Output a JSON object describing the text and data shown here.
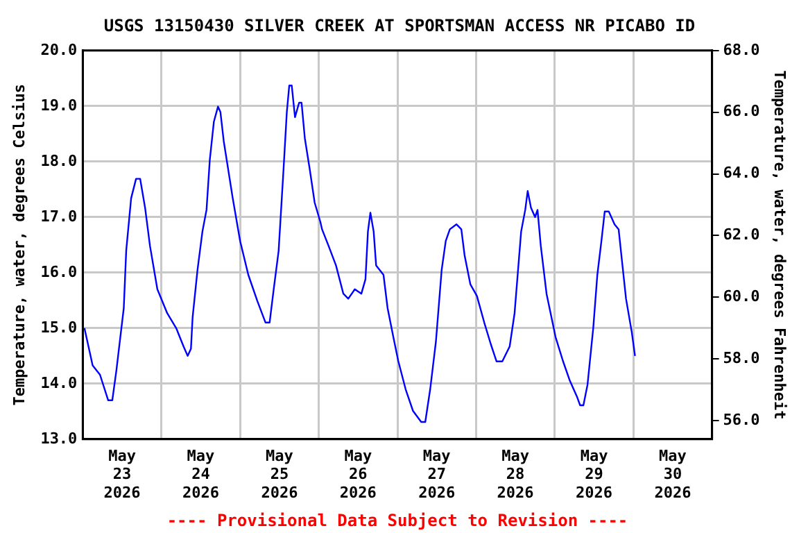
{
  "chart_data": {
    "type": "line",
    "title": "USGS 13150430 SILVER CREEK AT SPORTSMAN ACCESS NR PICABO ID",
    "ylabel": "Temperature, water, degrees Celsius",
    "y2label": "Temperature, water, degrees Fahrenheit",
    "annotations": [
      "---- Provisional Data Subject to Revision ----"
    ],
    "x": [
      "2026-05-23T00:30",
      "2026-05-23T03:00",
      "2026-05-23T05:15",
      "2026-05-23T07:45",
      "2026-05-23T09:00",
      "2026-05-23T10:15",
      "2026-05-23T12:30",
      "2026-05-23T13:15",
      "2026-05-23T14:45",
      "2026-05-23T16:15",
      "2026-05-23T17:30",
      "2026-05-23T19:00",
      "2026-05-23T20:30",
      "2026-05-23T22:45",
      "2026-05-24T01:45",
      "2026-05-24T04:30",
      "2026-05-24T06:45",
      "2026-05-24T08:00",
      "2026-05-24T09:00",
      "2026-05-24T09:30",
      "2026-05-24T11:00",
      "2026-05-24T12:30",
      "2026-05-24T13:45",
      "2026-05-24T14:45",
      "2026-05-24T16:00",
      "2026-05-24T17:15",
      "2026-05-24T18:00",
      "2026-05-24T19:00",
      "2026-05-24T20:15",
      "2026-05-24T21:45",
      "2026-05-25T00:00",
      "2026-05-25T02:30",
      "2026-05-25T05:15",
      "2026-05-25T07:45",
      "2026-05-25T09:00",
      "2026-05-25T10:15",
      "2026-05-25T11:45",
      "2026-05-25T13:15",
      "2026-05-25T14:15",
      "2026-05-25T15:00",
      "2026-05-25T15:45",
      "2026-05-25T16:45",
      "2026-05-25T18:00",
      "2026-05-25T18:45",
      "2026-05-25T19:45",
      "2026-05-25T21:15",
      "2026-05-25T22:45",
      "2026-05-26T00:30",
      "2026-05-26T01:00",
      "2026-05-26T03:00",
      "2026-05-26T05:15",
      "2026-05-26T07:30",
      "2026-05-26T09:00",
      "2026-05-26T11:00",
      "2026-05-26T13:00",
      "2026-05-26T14:15",
      "2026-05-26T15:00",
      "2026-05-26T15:45",
      "2026-05-26T16:45",
      "2026-05-26T17:30",
      "2026-05-26T19:45",
      "2026-05-26T21:00",
      "2026-05-26T22:45",
      "2026-05-27T00:15",
      "2026-05-27T02:30",
      "2026-05-27T04:45",
      "2026-05-27T07:15",
      "2026-05-27T08:30",
      "2026-05-27T10:00",
      "2026-05-27T11:45",
      "2026-05-27T13:30",
      "2026-05-27T14:45",
      "2026-05-27T16:00",
      "2026-05-27T18:00",
      "2026-05-27T19:30",
      "2026-05-27T20:30",
      "2026-05-27T22:15",
      "2026-05-28T00:15",
      "2026-05-28T02:30",
      "2026-05-28T04:30",
      "2026-05-28T06:15",
      "2026-05-28T08:00",
      "2026-05-28T10:15",
      "2026-05-28T11:45",
      "2026-05-28T13:45",
      "2026-05-28T15:00",
      "2026-05-28T15:45",
      "2026-05-28T16:45",
      "2026-05-28T18:00",
      "2026-05-28T18:45",
      "2026-05-28T19:45",
      "2026-05-28T21:30",
      "2026-05-29T00:15",
      "2026-05-29T02:30",
      "2026-05-29T04:30",
      "2026-05-29T06:45",
      "2026-05-29T07:45",
      "2026-05-29T08:45",
      "2026-05-29T10:00",
      "2026-05-29T11:45",
      "2026-05-29T13:00",
      "2026-05-29T14:15",
      "2026-05-29T15:15",
      "2026-05-29T16:30",
      "2026-05-29T18:15",
      "2026-05-29T19:30",
      "2026-05-29T20:30",
      "2026-05-29T21:45",
      "2026-05-29T23:30",
      "2026-05-30T00:30"
    ],
    "series": [
      {
        "color": "#0000ff",
        "values": [
          15.0,
          14.33,
          14.16,
          13.7,
          13.7,
          14.24,
          15.36,
          16.4,
          17.34,
          17.69,
          17.69,
          17.17,
          16.48,
          15.7,
          15.27,
          15.0,
          14.67,
          14.5,
          14.63,
          15.19,
          16.05,
          16.74,
          17.13,
          18.03,
          18.72,
          18.99,
          18.89,
          18.37,
          17.9,
          17.34,
          16.57,
          15.96,
          15.49,
          15.1,
          15.1,
          15.7,
          16.39,
          17.86,
          18.89,
          19.37,
          19.37,
          18.8,
          19.06,
          19.06,
          18.42,
          17.86,
          17.26,
          16.91,
          16.78,
          16.48,
          16.13,
          15.62,
          15.53,
          15.7,
          15.62,
          15.88,
          16.74,
          17.08,
          16.74,
          16.13,
          15.96,
          15.36,
          14.84,
          14.41,
          13.9,
          13.51,
          13.31,
          13.31,
          13.9,
          14.76,
          16.05,
          16.57,
          16.78,
          16.87,
          16.78,
          16.31,
          15.79,
          15.58,
          15.1,
          14.71,
          14.4,
          14.4,
          14.67,
          15.27,
          16.74,
          17.13,
          17.47,
          17.17,
          17.0,
          17.13,
          16.48,
          15.62,
          14.84,
          14.41,
          14.07,
          13.77,
          13.61,
          13.61,
          13.98,
          15.0,
          15.96,
          16.57,
          17.1,
          17.1,
          16.87,
          16.78,
          16.22,
          15.53,
          14.93,
          14.5
        ]
      }
    ],
    "xlim": [
      "2026-05-23T00:00",
      "2026-05-31T00:00"
    ],
    "xticks": [
      {
        "value": "2026-05-23T00:00",
        "label": null
      },
      {
        "value": "2026-05-23T12:00",
        "label": "May\n23\n2026"
      },
      {
        "value": "2026-05-24T00:00",
        "label": null
      },
      {
        "value": "2026-05-24T12:00",
        "label": "May\n24\n2026"
      },
      {
        "value": "2026-05-25T00:00",
        "label": null
      },
      {
        "value": "2026-05-25T12:00",
        "label": "May\n25\n2026"
      },
      {
        "value": "2026-05-26T00:00",
        "label": null
      },
      {
        "value": "2026-05-26T12:00",
        "label": "May\n26\n2026"
      },
      {
        "value": "2026-05-27T00:00",
        "label": null
      },
      {
        "value": "2026-05-27T12:00",
        "label": "May\n27\n2026"
      },
      {
        "value": "2026-05-28T00:00",
        "label": null
      },
      {
        "value": "2026-05-28T12:00",
        "label": "May\n28\n2026"
      },
      {
        "value": "2026-05-29T00:00",
        "label": null
      },
      {
        "value": "2026-05-29T12:00",
        "label": "May\n29\n2026"
      },
      {
        "value": "2026-05-30T00:00",
        "label": null
      },
      {
        "value": "2026-05-30T12:00",
        "label": "May\n30\n2026"
      },
      {
        "value": "2026-05-31T00:00",
        "label": null
      }
    ],
    "ylim": [
      13,
      20
    ],
    "yticks": [
      {
        "value": 13,
        "label": "13.0"
      },
      {
        "value": 14,
        "label": "14.0"
      },
      {
        "value": 15,
        "label": "15.0"
      },
      {
        "value": 16,
        "label": "16.0"
      },
      {
        "value": 17,
        "label": "17.0"
      },
      {
        "value": 18,
        "label": "18.0"
      },
      {
        "value": 19,
        "label": "19.0"
      },
      {
        "value": 20,
        "label": "20.0"
      }
    ],
    "y2lim": [
      55.4,
      68
    ],
    "y2ticks": [
      {
        "value": 56,
        "label": "56.0"
      },
      {
        "value": 58,
        "label": "58.0"
      },
      {
        "value": 60,
        "label": "60.0"
      },
      {
        "value": 62,
        "label": "62.0"
      },
      {
        "value": 64,
        "label": "64.0"
      },
      {
        "value": 66,
        "label": "66.0"
      },
      {
        "value": 68,
        "label": "68.0"
      }
    ],
    "grid": true,
    "legend": false,
    "marker": "none",
    "line_style": "solid"
  }
}
